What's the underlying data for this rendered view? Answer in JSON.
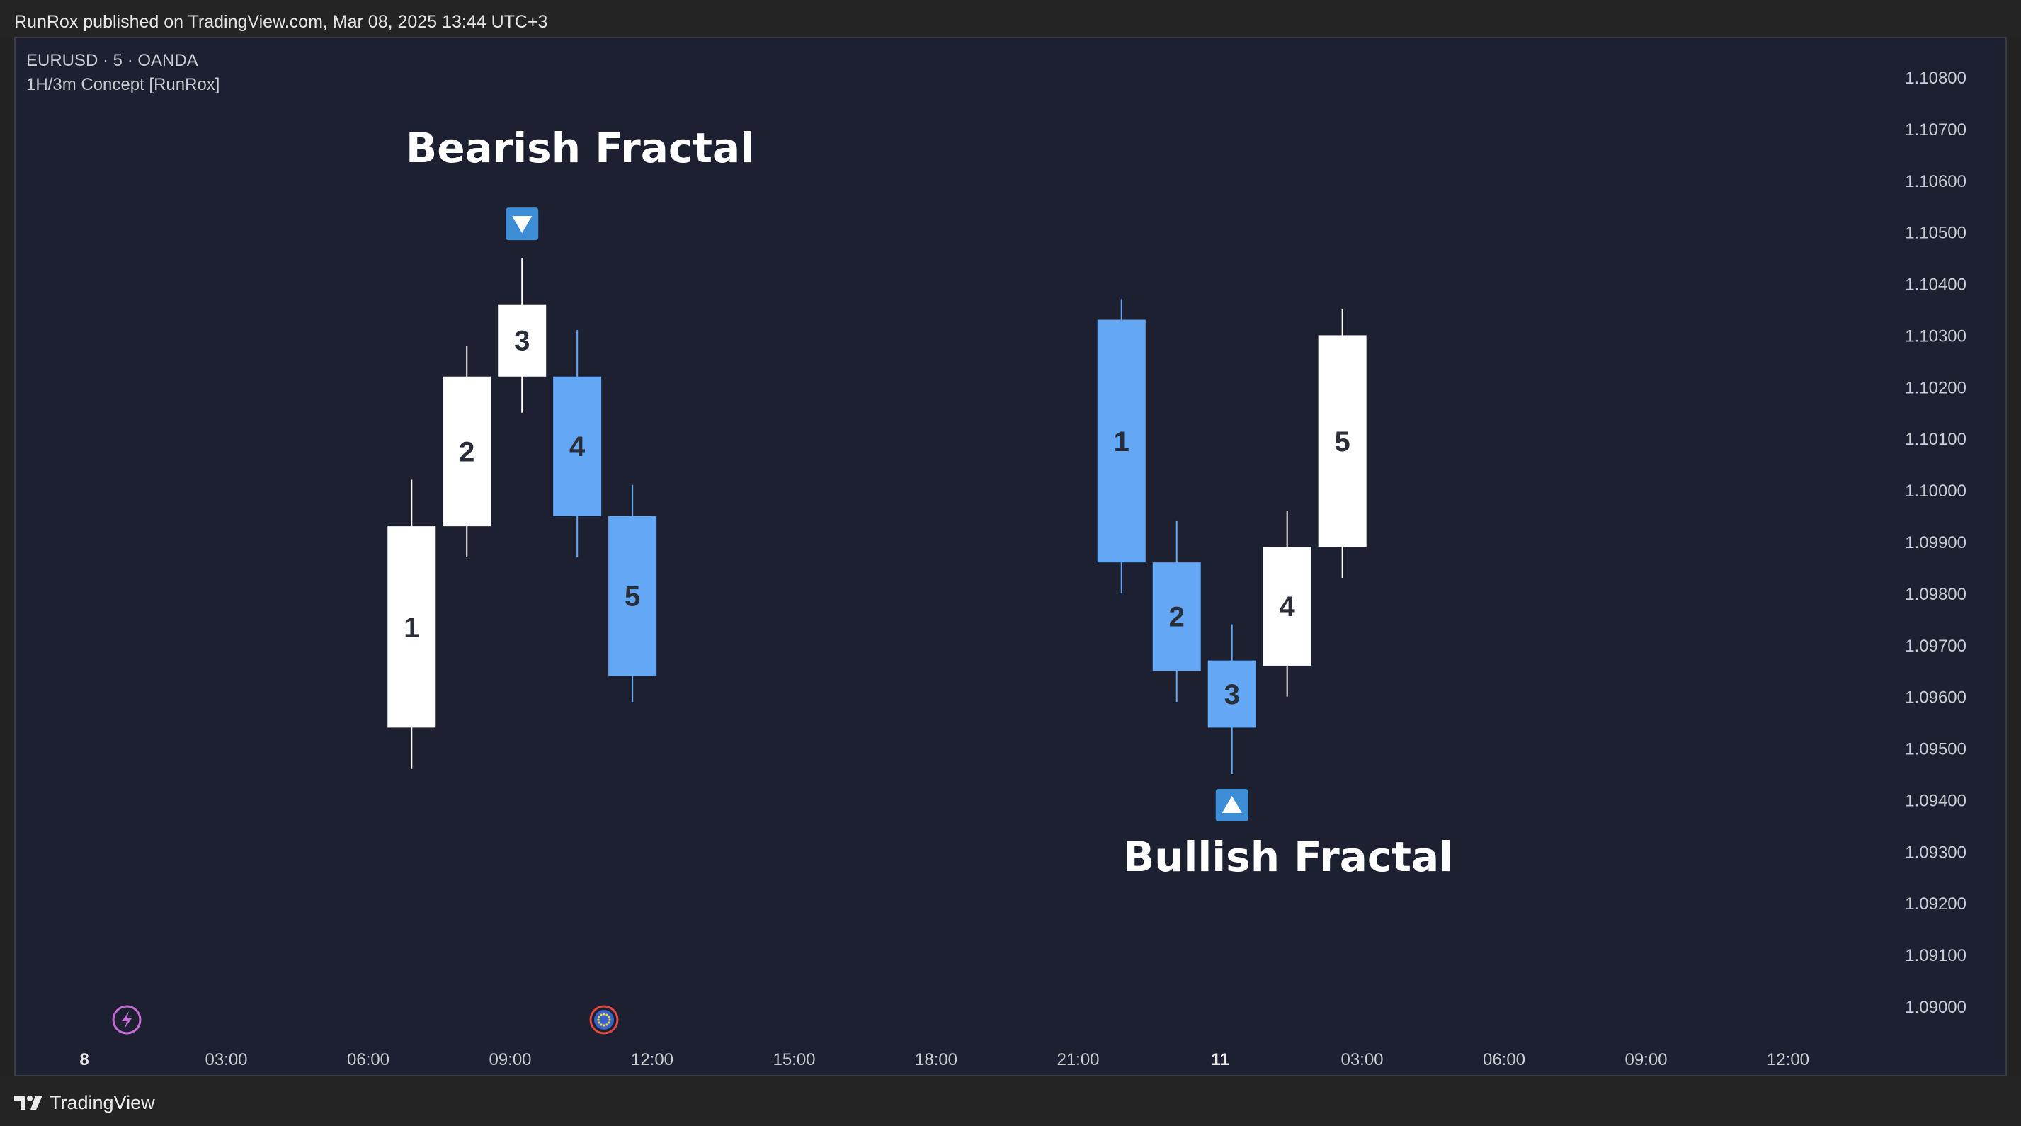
{
  "header": {
    "published_text": "RunRox published on TradingView.com, Mar 08, 2025 13:44 UTC+3"
  },
  "chart_header": {
    "symbol_line": "EURUSD · 5 · OANDA",
    "indicator_line": "1H/3m Concept [RunRox]"
  },
  "footer": {
    "brand": "TradingView"
  },
  "colors": {
    "background": "#1c2030",
    "bull_candle": "#ffffff",
    "bear_candle": "#64a8f5",
    "marker": "#3d8ed6",
    "text": "#ffffff",
    "candle_number_light": "#2a2e39",
    "axis_text": "#c9ccd3"
  },
  "chart_data": {
    "type": "candlestick",
    "y_axis": {
      "labels": [
        "1.10800",
        "1.10700",
        "1.10600",
        "1.10500",
        "1.10400",
        "1.10300",
        "1.10200",
        "1.10100",
        "1.10000",
        "1.09900",
        "1.09800",
        "1.09700",
        "1.09600",
        "1.09500",
        "1.09400",
        "1.09300",
        "1.09200",
        "1.09100",
        "1.09000"
      ],
      "ylim": [
        1.0895,
        1.1082
      ]
    },
    "x_axis": {
      "labels": [
        {
          "label": "8",
          "bold": true
        },
        {
          "label": "03:00"
        },
        {
          "label": "06:00"
        },
        {
          "label": "09:00"
        },
        {
          "label": "12:00"
        },
        {
          "label": "15:00"
        },
        {
          "label": "18:00"
        },
        {
          "label": "21:00"
        },
        {
          "label": "11",
          "bold": true
        },
        {
          "label": "03:00"
        },
        {
          "label": "06:00"
        },
        {
          "label": "09:00"
        },
        {
          "label": "12:00"
        }
      ]
    },
    "annotations": [
      {
        "text": "Bearish Fractal",
        "marker": "down"
      },
      {
        "text": "Bullish Fractal",
        "marker": "up"
      }
    ],
    "series": [
      {
        "candles": [
          {
            "label": "1",
            "time": "06:55",
            "open": 1.0954,
            "high": 1.1002,
            "low": 1.0946,
            "close": 1.0993
          },
          {
            "label": "2",
            "time": "08:05",
            "open": 1.0993,
            "high": 1.1028,
            "low": 1.0987,
            "close": 1.1022
          },
          {
            "label": "3",
            "time": "09:15",
            "open": 1.1022,
            "high": 1.1045,
            "low": 1.1015,
            "close": 1.1036
          },
          {
            "label": "4",
            "time": "10:25",
            "open": 1.1022,
            "high": 1.1031,
            "low": 1.0987,
            "close": 1.0995
          },
          {
            "label": "5",
            "time": "11:35",
            "open": 1.0995,
            "high": 1.1001,
            "low": 1.0959,
            "close": 1.0964
          }
        ]
      },
      {
        "candles": [
          {
            "label": "1",
            "time": "21:55",
            "open": 1.1033,
            "high": 1.1037,
            "low": 1.098,
            "close": 1.0986
          },
          {
            "label": "2",
            "time": "23:05",
            "open": 1.0986,
            "high": 1.0994,
            "low": 1.0959,
            "close": 1.0965
          },
          {
            "label": "3",
            "time": "00:15",
            "open": 1.0967,
            "high": 1.0974,
            "low": 1.0945,
            "close": 1.0954
          },
          {
            "label": "4",
            "time": "01:25",
            "open": 1.0966,
            "high": 1.0996,
            "low": 1.096,
            "close": 1.0989
          },
          {
            "label": "5",
            "time": "02:35",
            "open": 1.0989,
            "high": 1.1035,
            "low": 1.0983,
            "close": 1.103
          }
        ]
      }
    ],
    "event_icons": [
      {
        "icon": "lightning-icon",
        "color": "#c66bd9"
      },
      {
        "icon": "eu-flag-icon",
        "color": "#e0473f"
      }
    ]
  }
}
